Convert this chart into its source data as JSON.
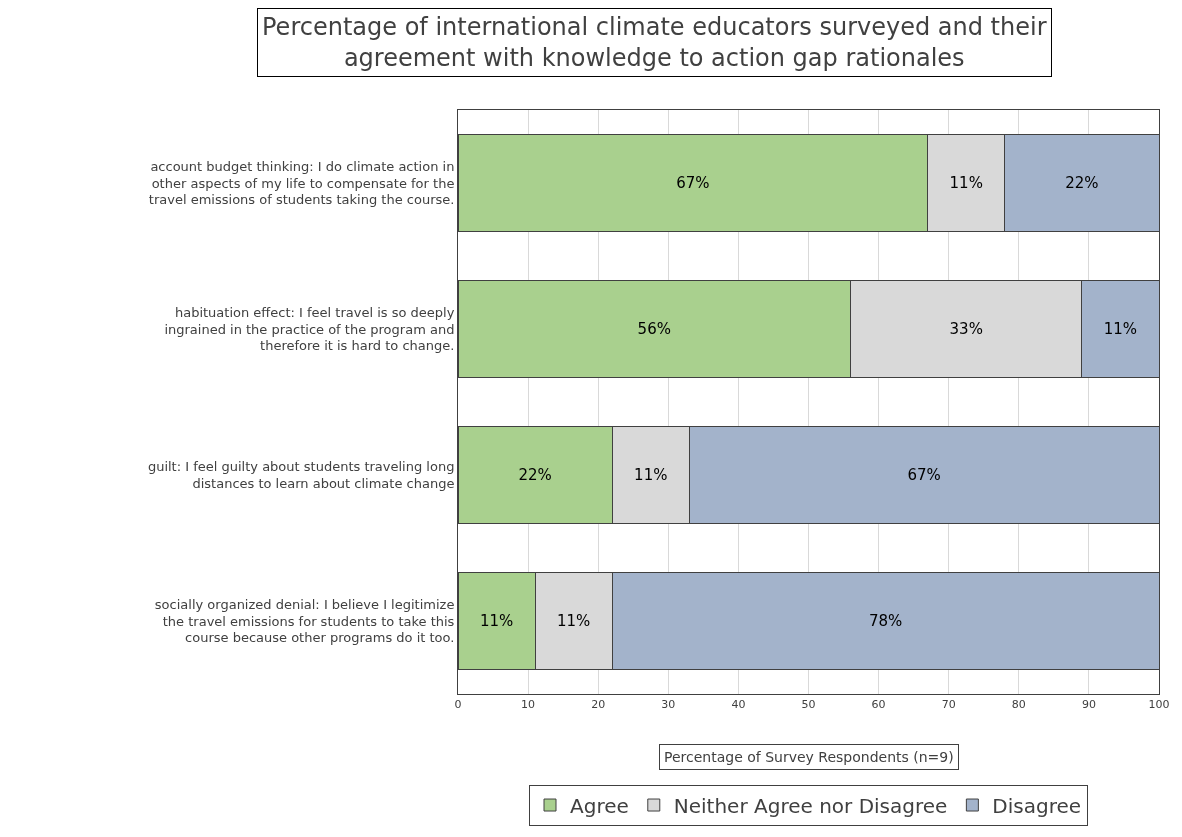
{
  "chart_data": {
    "type": "bar",
    "orientation": "horizontal",
    "stacked": true,
    "title": "Percentage of international climate educators surveyed and their agreement with knowledge to action gap rationales",
    "xlabel": "Percentage of Survey Respondents (n=9)",
    "categories": [
      "account budget thinking: I do climate action in other aspects of my life to compensate for the travel emissions of students taking the course.",
      "habituation effect: I feel travel is so deeply ingrained in the practice of the program and therefore it is hard to change.",
      "guilt: I feel guilty about students traveling long distances to learn about climate change",
      "socially organized denial: I believe I legitimize the travel emissions for students to take this course because other programs do it too."
    ],
    "series": [
      {
        "name": "Agree",
        "color": "#a9d08e",
        "values": [
          67,
          56,
          22,
          11
        ],
        "value_labels": [
          "67%",
          "56%",
          "22%",
          "11%"
        ]
      },
      {
        "name": "Neither Agree nor Disagree",
        "color": "#d9d9d9",
        "values": [
          11,
          33,
          11,
          11
        ],
        "value_labels": [
          "11%",
          "33%",
          "11%",
          "11%"
        ]
      },
      {
        "name": "Disagree",
        "color": "#a3b3cb",
        "values": [
          22,
          11,
          67,
          78
        ],
        "value_labels": [
          "22%",
          "11%",
          "67%",
          "78%"
        ]
      }
    ],
    "xlim": [
      0,
      100
    ],
    "xticks": [
      0,
      10,
      20,
      30,
      40,
      50,
      60,
      70,
      80,
      90,
      100
    ],
    "grid": "x",
    "legend": "bottom"
  }
}
